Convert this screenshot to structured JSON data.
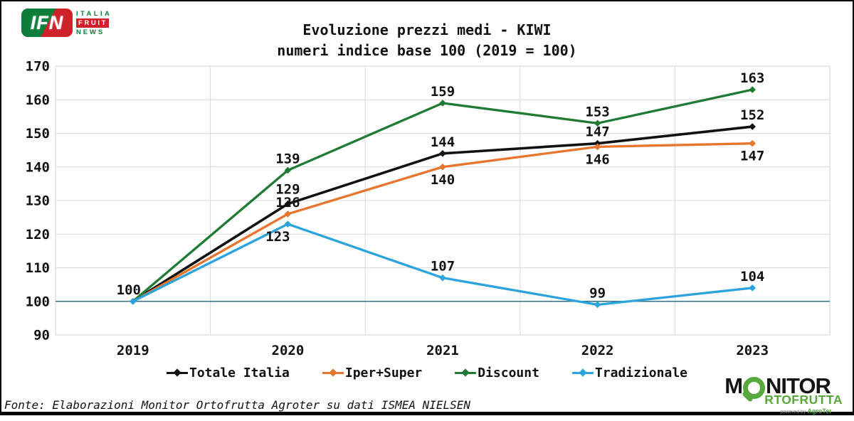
{
  "header": {
    "logo_ifn": {
      "text": "IFN",
      "sub": [
        "ITALIA",
        "FRUIT",
        "NEWS"
      ]
    }
  },
  "chart_data": {
    "type": "line",
    "title": "Evoluzione prezzi medi - KIWI",
    "subtitle": "numeri indice base 100 (2019 = 100)",
    "x": [
      "2019",
      "2020",
      "2021",
      "2022",
      "2023"
    ],
    "series": [
      {
        "name": "Totale Italia",
        "color": "#111111",
        "values": [
          100,
          129,
          144,
          147,
          152
        ]
      },
      {
        "name": "Iper+Super",
        "color": "#e7752d",
        "values": [
          100,
          126,
          140,
          146,
          147
        ]
      },
      {
        "name": "Discount",
        "color": "#1f7a34",
        "values": [
          100,
          139,
          159,
          153,
          163
        ]
      },
      {
        "name": "Tradizionale",
        "color": "#2ba4dd",
        "values": [
          100,
          123,
          107,
          99,
          104
        ]
      }
    ],
    "ylim": [
      90,
      170
    ],
    "ytick_step": 10,
    "baseline": {
      "value": 100,
      "color": "#356f8f"
    },
    "grid": true,
    "gridline_color": "#d9d9d9",
    "legend_position": "bottom"
  },
  "footer": {
    "source": "Fonte: Elaborazioni Monitor Ortofrutta Agroter su dati ISMEA NIELSEN",
    "logo_monitor": {
      "line1_prefix": "M",
      "line1_suffix": "NITOR",
      "line2": "RTOFRUTTA",
      "powered_prefix": "powered by ",
      "powered_brand": "AgroTer"
    }
  }
}
